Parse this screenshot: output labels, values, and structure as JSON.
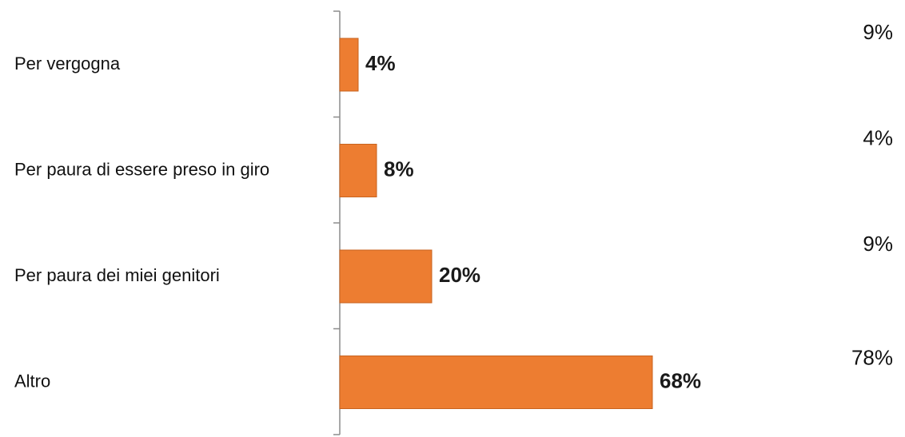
{
  "chart_data": {
    "type": "bar",
    "orientation": "horizontal",
    "categories": [
      "Per vergogna",
      "Per paura di essere preso in giro",
      "Per paura dei miei genitori",
      "Altro"
    ],
    "series": [
      {
        "values": [
          4,
          8,
          20,
          68
        ],
        "data_labels": [
          "4%",
          "8%",
          "20%",
          "68%"
        ],
        "color": "#ED7D31"
      }
    ],
    "side_values": [
      "9%",
      "4%",
      "9%",
      "78%"
    ],
    "xlim": [
      0,
      100
    ],
    "grid": false,
    "legend": "none"
  }
}
